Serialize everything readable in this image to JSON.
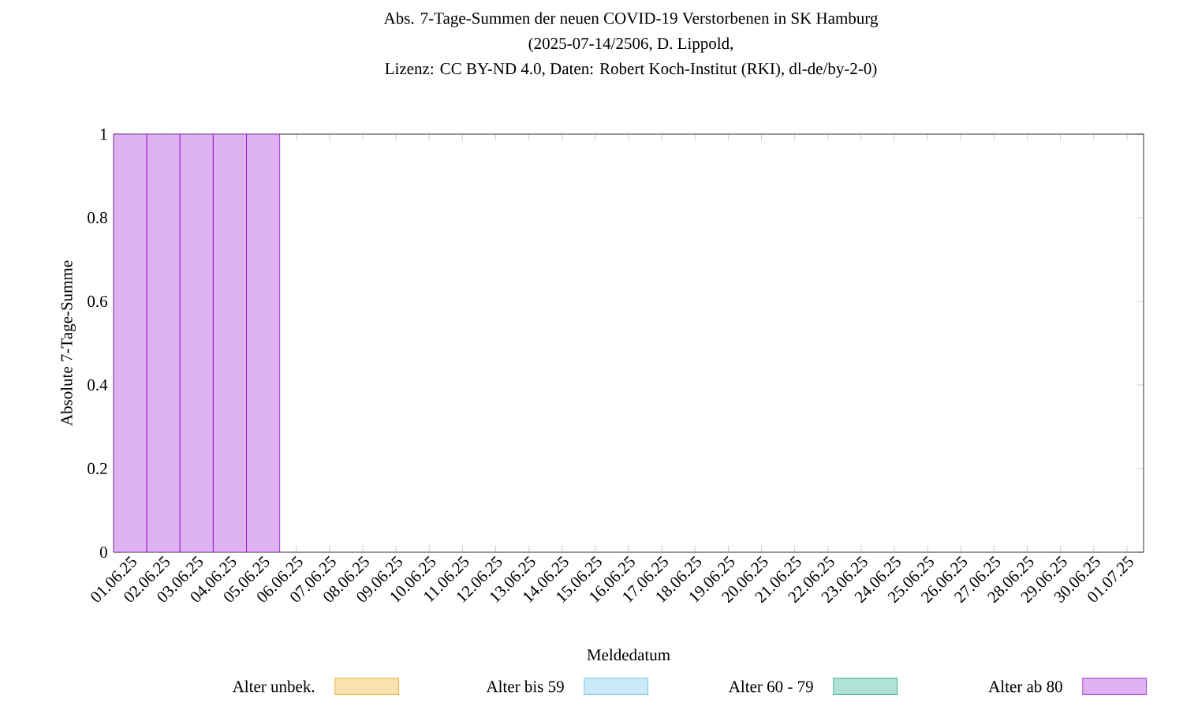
{
  "chart_data": {
    "type": "bar",
    "stacked": true,
    "title": "Abs. 7-Tage-Summen der neuen COVID-19 Verstorbenen in SK Hamburg",
    "subtitle": "(2025-07-14/2506, D. Lippold,",
    "annotations": [
      "Lizenz: CC BY-ND 4.0, Daten: Robert Koch-Institut (RKI), dl-de/by-2-0)"
    ],
    "xlabel": "Meldedatum",
    "ylabel": "Absolute 7-Tage-Summe",
    "categories": [
      "01.06.25",
      "02.06.25",
      "03.06.25",
      "04.06.25",
      "05.06.25",
      "06.06.25",
      "07.06.25",
      "08.06.25",
      "09.06.25",
      "10.06.25",
      "11.06.25",
      "12.06.25",
      "13.06.25",
      "14.06.25",
      "15.06.25",
      "16.06.25",
      "17.06.25",
      "18.06.25",
      "19.06.25",
      "20.06.25",
      "21.06.25",
      "22.06.25",
      "23.06.25",
      "24.06.25",
      "25.06.25",
      "26.06.25",
      "27.06.25",
      "28.06.25",
      "29.06.25",
      "30.06.25",
      "01.07.25"
    ],
    "series": [
      {
        "name": "Alter unbek.",
        "color": "#e69f00",
        "values": [
          0,
          0,
          0,
          0,
          0,
          0,
          0,
          0,
          0,
          0,
          0,
          0,
          0,
          0,
          0,
          0,
          0,
          0,
          0,
          0,
          0,
          0,
          0,
          0,
          0,
          0,
          0,
          0,
          0,
          0,
          0
        ]
      },
      {
        "name": "Alter bis 59",
        "color": "#56b4e9",
        "values": [
          0,
          0,
          0,
          0,
          0,
          0,
          0,
          0,
          0,
          0,
          0,
          0,
          0,
          0,
          0,
          0,
          0,
          0,
          0,
          0,
          0,
          0,
          0,
          0,
          0,
          0,
          0,
          0,
          0,
          0,
          0
        ]
      },
      {
        "name": "Alter 60 - 79",
        "color": "#009e73",
        "values": [
          0,
          0,
          0,
          0,
          0,
          0,
          0,
          0,
          0,
          0,
          0,
          0,
          0,
          0,
          0,
          0,
          0,
          0,
          0,
          0,
          0,
          0,
          0,
          0,
          0,
          0,
          0,
          0,
          0,
          0,
          0
        ]
      },
      {
        "name": "Alter ab 80",
        "color": "#9400d3",
        "values": [
          1,
          1,
          1,
          1,
          1,
          0,
          0,
          0,
          0,
          0,
          0,
          0,
          0,
          0,
          0,
          0,
          0,
          0,
          0,
          0,
          0,
          0,
          0,
          0,
          0,
          0,
          0,
          0,
          0,
          0,
          0
        ]
      }
    ],
    "ylim": [
      0,
      1
    ],
    "yticks": [
      0,
      0.2,
      0.4,
      0.6,
      0.8,
      1
    ],
    "grid": false,
    "legend": "bottom"
  }
}
